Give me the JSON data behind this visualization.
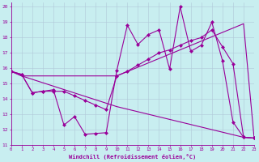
{
  "xlabel": "Windchill (Refroidissement éolien,°C)",
  "bg_color": "#c8eef0",
  "line_color": "#990099",
  "grid_color": "#b0c8d8",
  "xlim": [
    0,
    23
  ],
  "ylim": [
    11,
    20.3
  ],
  "xticks": [
    0,
    1,
    2,
    3,
    4,
    5,
    6,
    7,
    8,
    9,
    10,
    11,
    12,
    13,
    14,
    15,
    16,
    17,
    18,
    19,
    20,
    21,
    22,
    23
  ],
  "yticks": [
    11,
    12,
    13,
    14,
    15,
    16,
    17,
    18,
    19,
    20
  ],
  "line1_x": [
    0,
    1,
    2,
    3,
    4,
    5,
    6,
    7,
    8,
    9,
    10,
    11,
    12,
    13,
    14,
    15,
    16,
    17,
    18,
    19,
    20,
    21,
    22,
    23
  ],
  "line1_y": [
    15.8,
    15.6,
    14.4,
    14.5,
    14.6,
    12.3,
    12.85,
    11.7,
    11.75,
    11.8,
    15.85,
    18.8,
    17.55,
    18.2,
    18.5,
    15.95,
    20.0,
    17.1,
    17.5,
    19.0,
    16.5,
    12.5,
    11.5,
    11.45
  ],
  "line2_x": [
    0,
    1,
    2,
    3,
    4,
    5,
    6,
    7,
    8,
    9,
    10,
    11,
    12,
    13,
    14,
    15,
    16,
    17,
    18,
    19,
    20,
    21,
    22,
    23
  ],
  "line2_y": [
    15.8,
    15.6,
    14.4,
    14.5,
    14.5,
    14.5,
    14.2,
    13.9,
    13.6,
    13.3,
    15.5,
    15.8,
    16.2,
    16.6,
    17.0,
    17.2,
    17.5,
    17.8,
    18.0,
    18.5,
    17.4,
    16.3,
    11.5,
    11.45
  ],
  "line3_x": [
    0,
    1,
    10,
    22,
    23
  ],
  "line3_y": [
    15.8,
    15.5,
    15.5,
    18.9,
    11.45
  ],
  "line4_x": [
    0,
    1,
    10,
    22,
    23
  ],
  "line4_y": [
    15.8,
    15.5,
    13.5,
    11.5,
    11.45
  ]
}
